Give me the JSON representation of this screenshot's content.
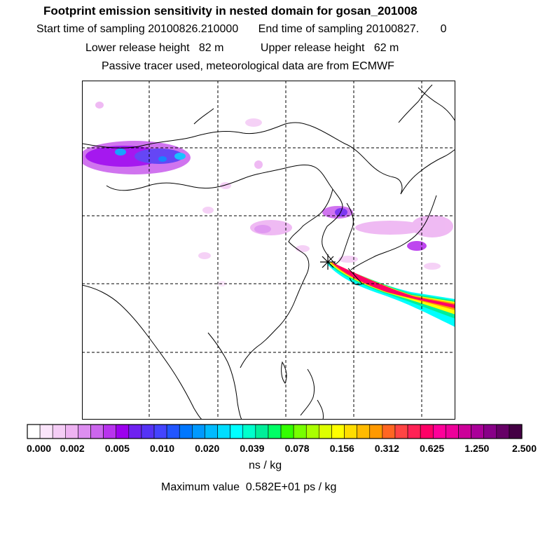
{
  "title": "Footprint emission sensitivity in nested domain for gosan_201008",
  "sampling": {
    "start_label": "Start time of sampling",
    "start_value": "20100826.210000",
    "end_label": "End time of sampling",
    "end_value": "20100827.",
    "end_suffix": "0"
  },
  "release": {
    "lower_label": "Lower release height",
    "lower_value": "82 m",
    "upper_label": "Upper release height",
    "upper_value": "62 m"
  },
  "tracer_note": "Passive tracer used, meteorological data are from ECMWF",
  "colorbar": {
    "colors": [
      "#ffffff",
      "#fbe5fb",
      "#f5cdf6",
      "#eeb3f2",
      "#dd8ef0",
      "#cc66ee",
      "#b833ee",
      "#9c00ee",
      "#6f22f0",
      "#5533f5",
      "#4444ff",
      "#2255ff",
      "#0077ff",
      "#0099ff",
      "#00bbff",
      "#00ddff",
      "#00ffff",
      "#00ffcc",
      "#00ee99",
      "#00ff66",
      "#33ff00",
      "#77ff00",
      "#aaff00",
      "#ddff00",
      "#ffff00",
      "#ffdd00",
      "#ffbb00",
      "#ff9900",
      "#ff6622",
      "#ff4444",
      "#ff2255",
      "#ff0066",
      "#ff0099",
      "#ee0099",
      "#cc0099",
      "#aa0099",
      "#880088",
      "#660066",
      "#440044"
    ],
    "labels": [
      "0.000",
      "0.002",
      "0.005",
      "0.010",
      "0.020",
      "0.039",
      "0.078",
      "0.156",
      "0.312",
      "0.625",
      "1.250",
      "2.500"
    ],
    "unit": "ns / kg"
  },
  "maximum": {
    "label": "Maximum value",
    "value": "0.582E+01 ps / kg"
  },
  "map": {
    "receptor_icon": "asterisk-receptor-icon",
    "plume_colors": [
      "#00ffff",
      "#00ee99",
      "#ffff00",
      "#ff9900",
      "#ff0066"
    ]
  }
}
